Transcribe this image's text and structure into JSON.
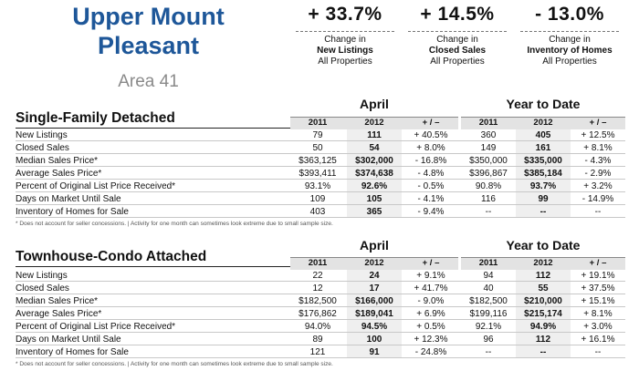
{
  "header": {
    "title_line1": "Upper Mount",
    "title_line2": "Pleasant",
    "area": "Area 41"
  },
  "stats": [
    {
      "value": "+ 33.7%",
      "line1": "Change in",
      "line2": "New Listings",
      "line3": "All Properties"
    },
    {
      "value": "+ 14.5%",
      "line1": "Change in",
      "line2": "Closed Sales",
      "line3": "All Properties"
    },
    {
      "value": "- 13.0%",
      "line1": "Change in",
      "line2": "Inventory of Homes",
      "line3": "All Properties"
    }
  ],
  "columns": {
    "april": "April",
    "ytd": "Year to Date",
    "y1": "2011",
    "y2": "2012",
    "change": "+ / –"
  },
  "sections": [
    {
      "title": "Single-Family Detached",
      "rows": [
        {
          "label": "New Listings",
          "a1": "79",
          "a2": "111",
          "ac": "+ 40.5%",
          "y1": "360",
          "y2": "405",
          "yc": "+ 12.5%"
        },
        {
          "label": "Closed Sales",
          "a1": "50",
          "a2": "54",
          "ac": "+ 8.0%",
          "y1": "149",
          "y2": "161",
          "yc": "+ 8.1%"
        },
        {
          "label": "Median Sales Price*",
          "a1": "$363,125",
          "a2": "$302,000",
          "ac": "- 16.8%",
          "y1": "$350,000",
          "y2": "$335,000",
          "yc": "- 4.3%"
        },
        {
          "label": "Average Sales Price*",
          "a1": "$393,411",
          "a2": "$374,638",
          "ac": "- 4.8%",
          "y1": "$396,867",
          "y2": "$385,184",
          "yc": "- 2.9%"
        },
        {
          "label": "Percent of Original List Price Received*",
          "a1": "93.1%",
          "a2": "92.6%",
          "ac": "- 0.5%",
          "y1": "90.8%",
          "y2": "93.7%",
          "yc": "+ 3.2%"
        },
        {
          "label": "Days on Market Until Sale",
          "a1": "109",
          "a2": "105",
          "ac": "- 4.1%",
          "y1": "116",
          "y2": "99",
          "yc": "- 14.9%"
        },
        {
          "label": "Inventory of Homes for Sale",
          "a1": "403",
          "a2": "365",
          "ac": "- 9.4%",
          "y1": "--",
          "y2": "--",
          "yc": "--"
        }
      ],
      "footnote": "* Does not account for seller concessions.  |  Activity for one month can sometimes look extreme due to small sample size."
    },
    {
      "title": "Townhouse-Condo Attached",
      "rows": [
        {
          "label": "New Listings",
          "a1": "22",
          "a2": "24",
          "ac": "+ 9.1%",
          "y1": "94",
          "y2": "112",
          "yc": "+ 19.1%"
        },
        {
          "label": "Closed Sales",
          "a1": "12",
          "a2": "17",
          "ac": "+ 41.7%",
          "y1": "40",
          "y2": "55",
          "yc": "+ 37.5%"
        },
        {
          "label": "Median Sales Price*",
          "a1": "$182,500",
          "a2": "$166,000",
          "ac": "- 9.0%",
          "y1": "$182,500",
          "y2": "$210,000",
          "yc": "+ 15.1%"
        },
        {
          "label": "Average Sales Price*",
          "a1": "$176,862",
          "a2": "$189,041",
          "ac": "+ 6.9%",
          "y1": "$199,116",
          "y2": "$215,174",
          "yc": "+ 8.1%"
        },
        {
          "label": "Percent of Original List Price Received*",
          "a1": "94.0%",
          "a2": "94.5%",
          "ac": "+ 0.5%",
          "y1": "92.1%",
          "y2": "94.9%",
          "yc": "+ 3.0%"
        },
        {
          "label": "Days on Market Until Sale",
          "a1": "89",
          "a2": "100",
          "ac": "+ 12.3%",
          "y1": "96",
          "y2": "112",
          "yc": "+ 16.1%"
        },
        {
          "label": "Inventory of Homes for Sale",
          "a1": "121",
          "a2": "91",
          "ac": "- 24.8%",
          "y1": "--",
          "y2": "--",
          "yc": "--"
        }
      ],
      "footnote": "* Does not account for seller concessions.  |  Activity for one month can sometimes look extreme due to small sample size."
    }
  ]
}
